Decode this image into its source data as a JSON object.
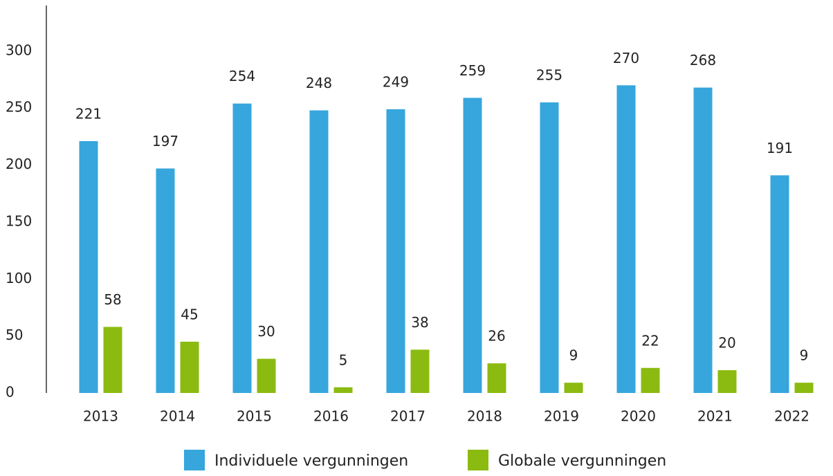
{
  "chart_data": {
    "type": "bar",
    "categories": [
      "2013",
      "2014",
      "2015",
      "2016",
      "2017",
      "2018",
      "2019",
      "2020",
      "2021",
      "2022"
    ],
    "series": [
      {
        "name": "Individuele vergunningen",
        "color": "#36a6dd",
        "values": [
          221,
          197,
          254,
          248,
          249,
          259,
          255,
          270,
          268,
          191
        ]
      },
      {
        "name": "Globale vergunningen",
        "color": "#8bbb10",
        "values": [
          58,
          45,
          30,
          5,
          38,
          26,
          9,
          22,
          20,
          9
        ]
      }
    ],
    "ylim": [
      0,
      340
    ],
    "yticks": [
      0,
      50,
      100,
      150,
      200,
      250,
      300
    ],
    "grid": false
  }
}
